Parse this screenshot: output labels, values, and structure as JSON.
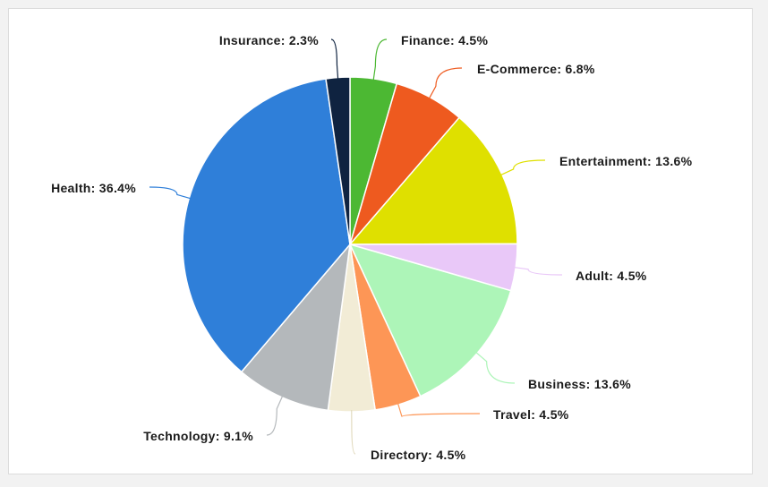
{
  "chart_data": {
    "type": "pie",
    "start_angle_deg": 0,
    "slices": [
      {
        "name": "Finance",
        "label": "Finance: 4.5%",
        "value": 4.5,
        "color": "#4cb833"
      },
      {
        "name": "E-Commerce",
        "label": "E-Commerce: 6.8%",
        "value": 6.8,
        "color": "#ee5a1f"
      },
      {
        "name": "Entertainment",
        "label": "Entertainment: 13.6%",
        "value": 13.6,
        "color": "#dfe000"
      },
      {
        "name": "Adult",
        "label": "Adult: 4.5%",
        "value": 4.5,
        "color": "#e9c8f8"
      },
      {
        "name": "Business",
        "label": "Business: 13.6%",
        "value": 13.6,
        "color": "#adf5b8"
      },
      {
        "name": "Travel",
        "label": "Travel: 4.5%",
        "value": 4.5,
        "color": "#fd9656"
      },
      {
        "name": "Directory",
        "label": "Directory: 4.5%",
        "value": 4.5,
        "color": "#f2ecd6"
      },
      {
        "name": "Technology",
        "label": "Technology: 9.1%",
        "value": 9.1,
        "color": "#b4b8bb"
      },
      {
        "name": "Health",
        "label": "Health: 36.4%",
        "value": 36.4,
        "color": "#2f7fd9"
      },
      {
        "name": "Insurance",
        "label": "Insurance: 2.3%",
        "value": 2.3,
        "color": "#0f2340"
      }
    ]
  }
}
